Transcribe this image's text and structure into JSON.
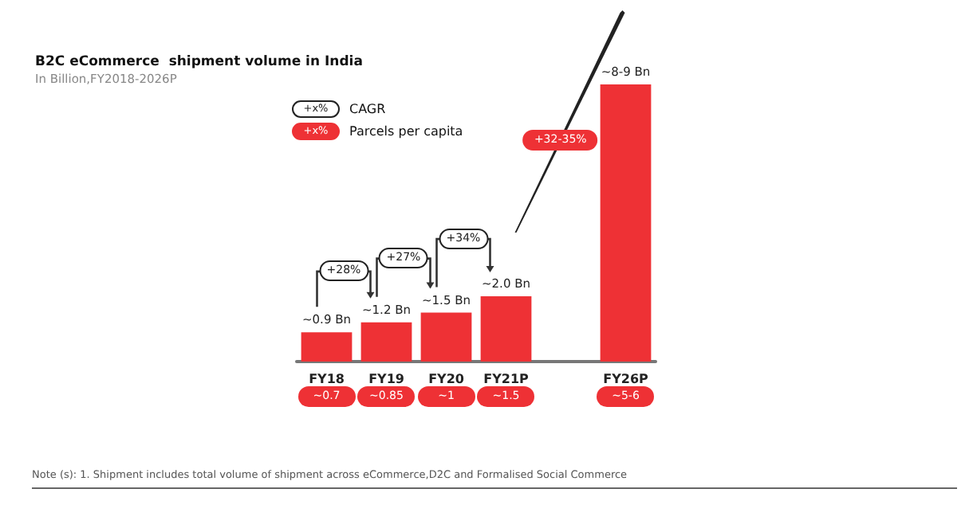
{
  "chart_data": {
    "type": "bar",
    "title": "B2C eCommerce  shipment volume in India",
    "subtitle": "In Billion,FY2018-2026P",
    "categories": [
      "FY18",
      "FY19",
      "FY20",
      "FY21P",
      null,
      "FY26P"
    ],
    "values": [
      0.9,
      1.2,
      1.5,
      2.0,
      null,
      8.5
    ],
    "value_labels": [
      "~0.9 Bn",
      "~1.2 Bn",
      "~1.5 Bn",
      "~2.0 Bn",
      null,
      "~8-9 Bn"
    ],
    "ylim": [
      0,
      8.5
    ],
    "tick_labels": "x",
    "color": "#ee3135",
    "grid": false,
    "annotations": [
      "Note (s): 1. Shipment includes total volume of shipment across eCommerce,D2C and Formalised Social Commerce",
      "+x%",
      "CAGR",
      "+x%",
      "Parcels per capita",
      "+28%",
      "+27%",
      "+34%",
      "+32-35%",
      "~0.7",
      "~0.85",
      "~1",
      "~1.5",
      "~5-6"
    ]
  }
}
